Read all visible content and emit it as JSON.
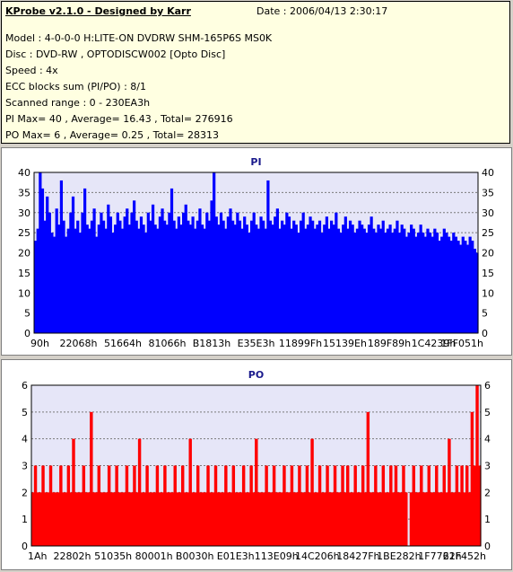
{
  "header": {
    "app_title": "KProbe v2.1.0 - Designed by Karr",
    "date": "Date : 2006/04/13 2:30:17",
    "lines": [
      "Model : 4-0-0-0 H:LITE-ON DVDRW SHM-165P6S MS0K",
      "Disc : DVD-RW , OPTODISCW002 [Opto Disc]",
      "Speed : 4x",
      "ECC blocks sum (PI/PO) : 8/1",
      "Scanned range : 0 - 230EA3h",
      "PI Max= 40 , Average= 16.43 , Total= 276916",
      "PO Max= 6 , Average= 0.25 , Total= 28313"
    ]
  },
  "colors": {
    "pi": "#0000ff",
    "po": "#ff0000",
    "plot_bg": "#e6e6f8",
    "grid": "#7a7a7a"
  },
  "chart_data": [
    {
      "type": "bar",
      "title": "PI",
      "ylim": [
        0,
        40
      ],
      "yticks": [
        0,
        5,
        10,
        15,
        20,
        25,
        30,
        35,
        40
      ],
      "xticks": [
        "90h",
        "22068h",
        "51664h",
        "81066h",
        "B1813h",
        "E35E3h",
        "11899Fh",
        "15139Eh",
        "189F89h",
        "1C4239h",
        "1FF051h"
      ],
      "grid": true,
      "series": [
        {
          "values": [
            23,
            26,
            40,
            36,
            28,
            34,
            30,
            25,
            24,
            31,
            27,
            38,
            28,
            24,
            26,
            30,
            34,
            26,
            28,
            25,
            30,
            36,
            27,
            26,
            28,
            31,
            24,
            27,
            30,
            28,
            26,
            32,
            29,
            25,
            27,
            30,
            28,
            26,
            29,
            31,
            27,
            30,
            33,
            28,
            26,
            29,
            27,
            25,
            30,
            28,
            32,
            27,
            26,
            29,
            31,
            28,
            27,
            30,
            36,
            28,
            26,
            29,
            27,
            30,
            32,
            28,
            27,
            29,
            26,
            28,
            31,
            27,
            26,
            30,
            28,
            33,
            40,
            29,
            27,
            30,
            28,
            26,
            29,
            31,
            28,
            27,
            30,
            28,
            26,
            29,
            27,
            25,
            28,
            30,
            27,
            26,
            29,
            28,
            26,
            38,
            28,
            27,
            29,
            31,
            26,
            28,
            27,
            30,
            29,
            26,
            28,
            27,
            25,
            28,
            30,
            26,
            27,
            29,
            28,
            26,
            27,
            28,
            25,
            27,
            29,
            26,
            28,
            27,
            30,
            26,
            25,
            27,
            29,
            26,
            28,
            27,
            25,
            26,
            28,
            27,
            26,
            25,
            27,
            29,
            26,
            25,
            27,
            26,
            28,
            25,
            26,
            27,
            25,
            26,
            28,
            25,
            27,
            26,
            24,
            25,
            27,
            26,
            24,
            25,
            27,
            25,
            24,
            26,
            25,
            24,
            26,
            25,
            23,
            24,
            26,
            25,
            24,
            23,
            25,
            24,
            23,
            22,
            24,
            23,
            22,
            24,
            23,
            21,
            20
          ]
        }
      ]
    },
    {
      "type": "bar",
      "title": "PO",
      "ylim": [
        0,
        6
      ],
      "yticks": [
        0,
        1,
        2,
        3,
        4,
        5,
        6
      ],
      "xticks": [
        "1Ah",
        "22802h",
        "51035h",
        "80001h",
        "B0030h",
        "E01E3h",
        "113E09h",
        "14C206h",
        "18427Fh",
        "1BE282h",
        "1F7761h",
        "22F452h"
      ],
      "grid": true,
      "series": [
        {
          "values": [
            2,
            3,
            2,
            2,
            3,
            2,
            2,
            3,
            2,
            2,
            2,
            3,
            2,
            2,
            3,
            2,
            4,
            2,
            2,
            2,
            3,
            2,
            2,
            5,
            2,
            2,
            3,
            2,
            2,
            2,
            3,
            2,
            2,
            3,
            2,
            2,
            2,
            3,
            2,
            2,
            3,
            2,
            4,
            2,
            2,
            3,
            2,
            2,
            2,
            3,
            2,
            2,
            3,
            2,
            2,
            2,
            3,
            2,
            2,
            3,
            2,
            2,
            4,
            2,
            2,
            3,
            2,
            2,
            2,
            3,
            2,
            2,
            3,
            2,
            2,
            2,
            3,
            2,
            2,
            3,
            2,
            2,
            2,
            3,
            2,
            2,
            3,
            2,
            4,
            2,
            2,
            2,
            3,
            2,
            2,
            3,
            2,
            2,
            2,
            3,
            2,
            2,
            3,
            2,
            2,
            3,
            2,
            2,
            3,
            2,
            4,
            2,
            2,
            3,
            2,
            2,
            3,
            2,
            2,
            3,
            2,
            2,
            3,
            2,
            3,
            2,
            2,
            3,
            2,
            2,
            3,
            2,
            5,
            2,
            2,
            3,
            2,
            2,
            3,
            2,
            2,
            3,
            2,
            3,
            2,
            2,
            3,
            2,
            0,
            2,
            3,
            2,
            2,
            3,
            2,
            2,
            3,
            2,
            2,
            3,
            2,
            2,
            3,
            2,
            4,
            2,
            2,
            3,
            2,
            3,
            2,
            3,
            2,
            5,
            3,
            6,
            3
          ]
        }
      ]
    }
  ]
}
